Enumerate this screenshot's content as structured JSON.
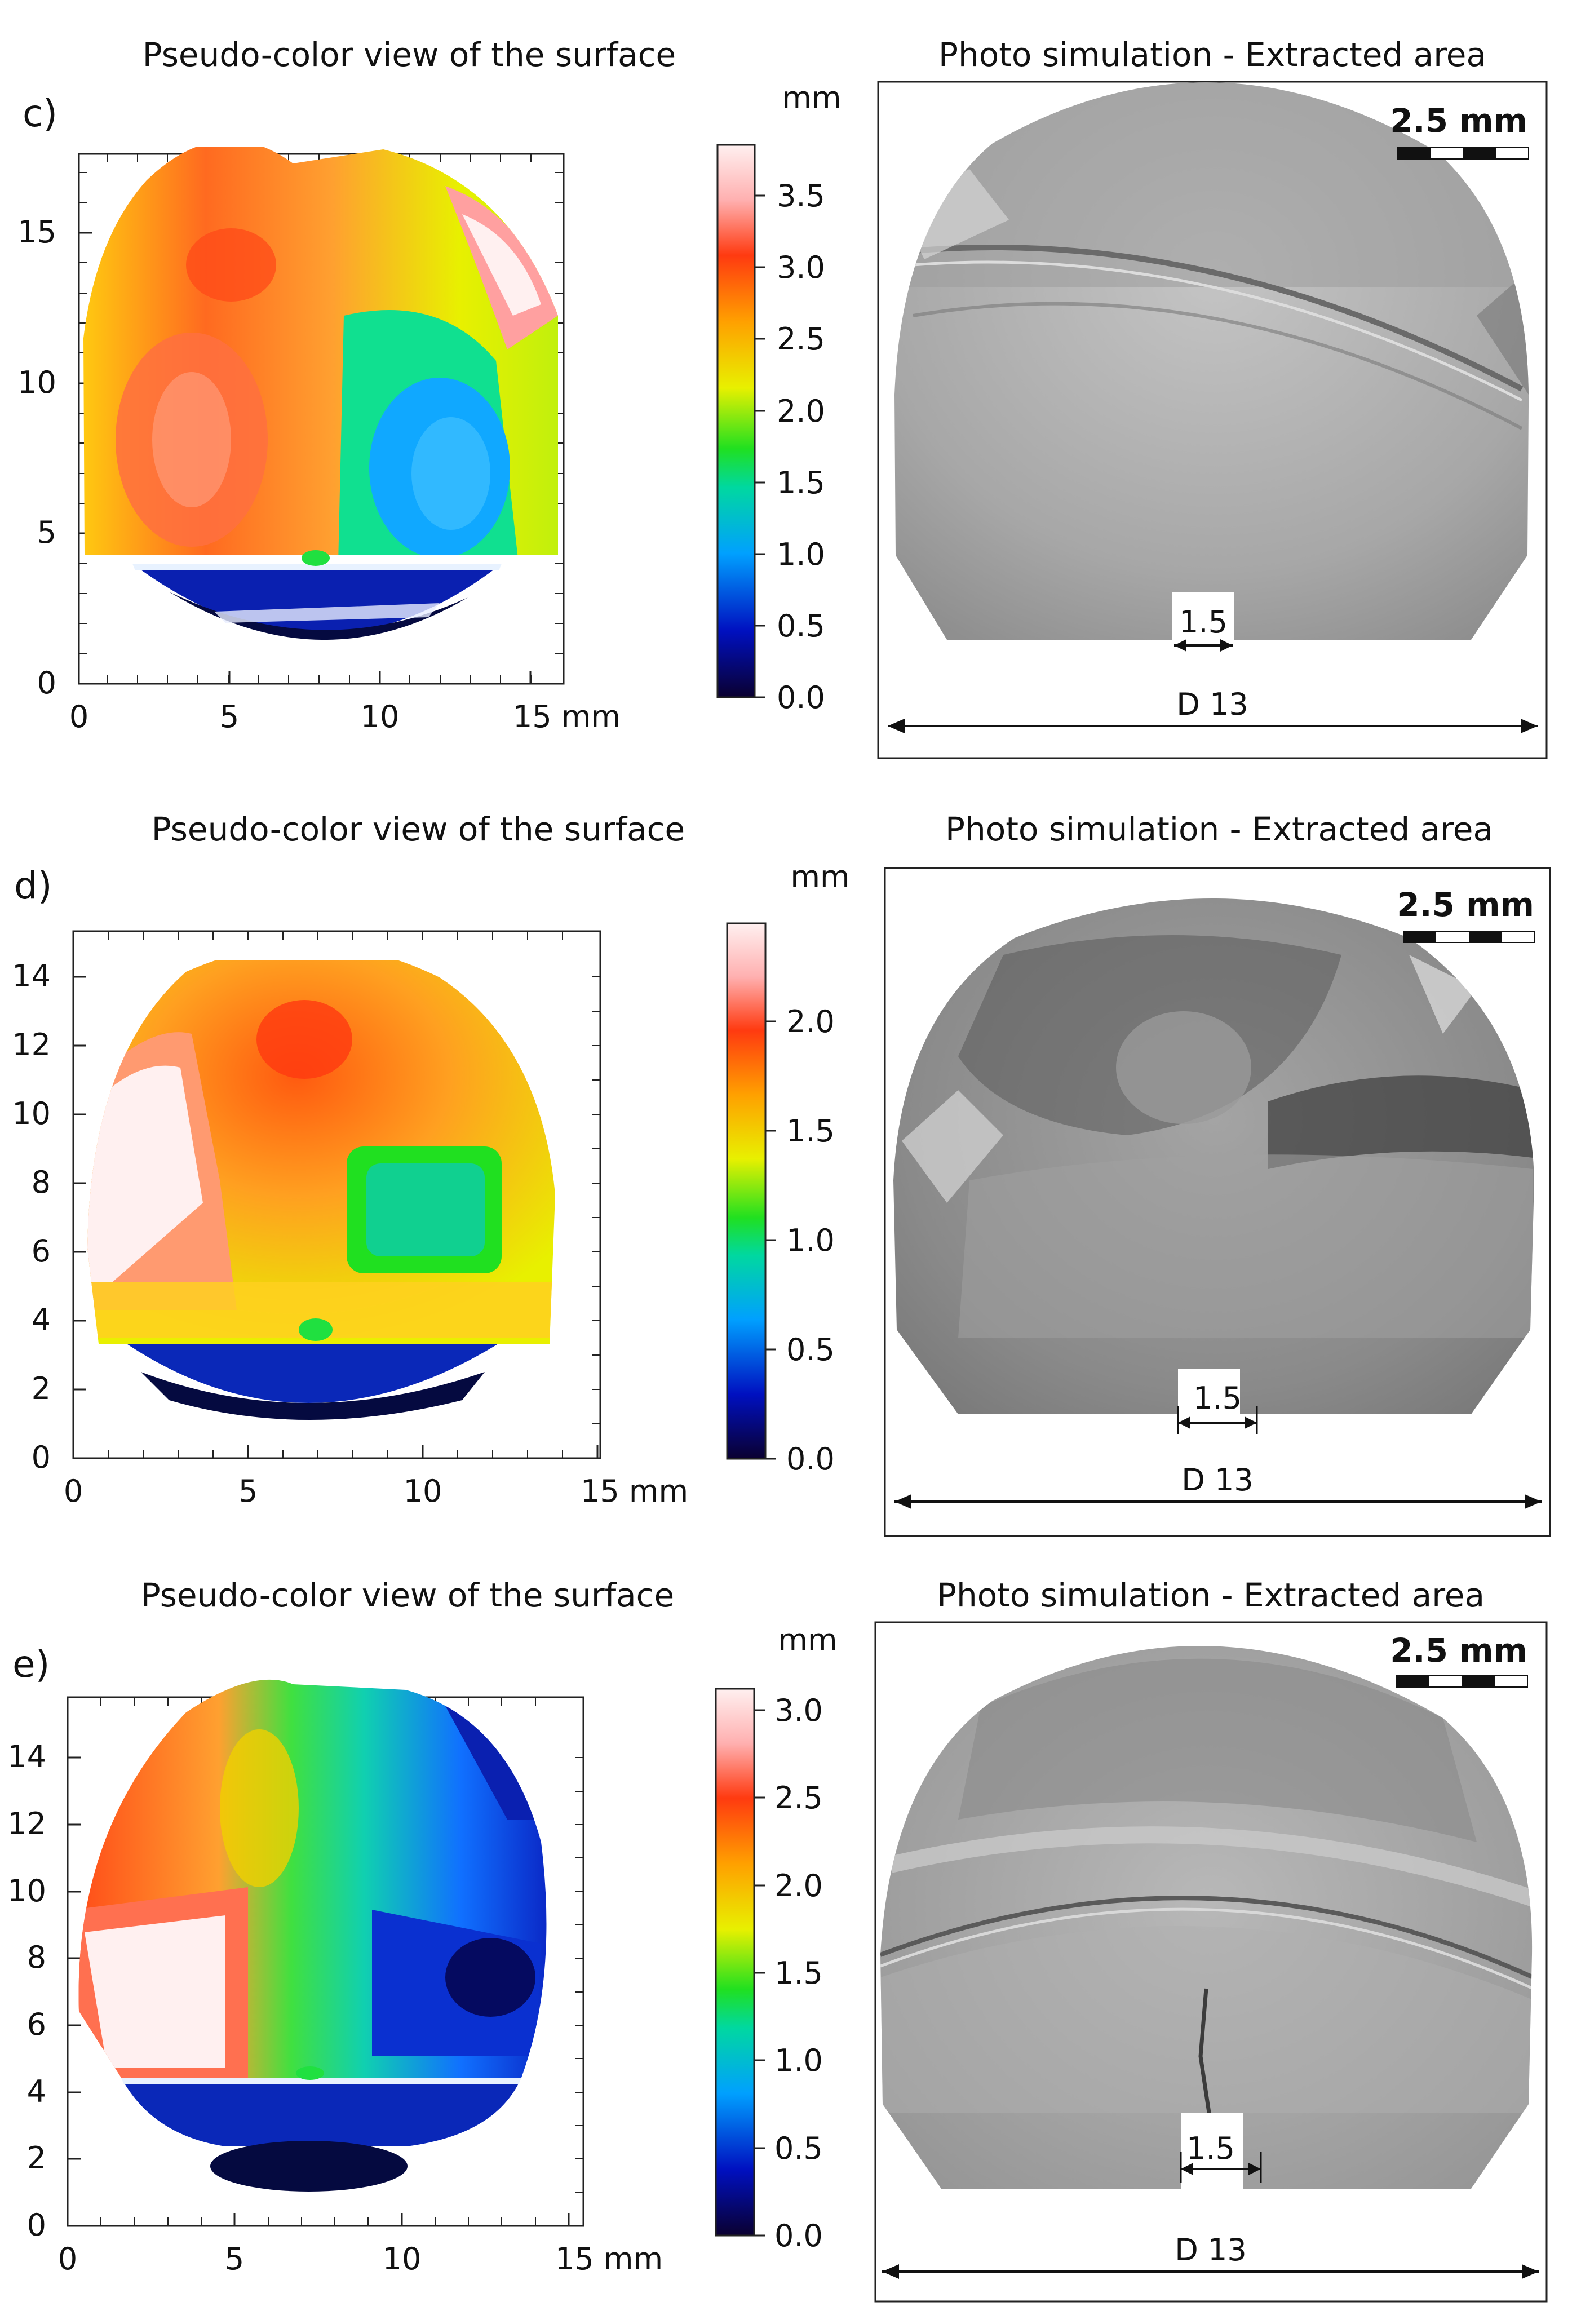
{
  "labels": {
    "pseudo_title": "Pseudo-color view of the surface",
    "photo_title": "Photo simulation - Extracted area",
    "colorbar_unit": "mm",
    "axis_unit": "mm",
    "scale_bar": "2.5 mm",
    "gap_label": "1.5",
    "diameter_label": "D 13"
  },
  "panels": [
    {
      "letter": "c)",
      "xticks": [
        "0",
        "5",
        "10",
        "15 mm"
      ],
      "yticks": [
        "0",
        "5",
        "10",
        "15"
      ],
      "colorbar_ticks": [
        "0.0",
        "0.5",
        "1.0",
        "1.5",
        "2.0",
        "2.5",
        "3.0",
        "3.5"
      ]
    },
    {
      "letter": "d)",
      "xticks": [
        "0",
        "5",
        "10",
        "15 mm"
      ],
      "yticks": [
        "0",
        "2",
        "4",
        "6",
        "8",
        "10",
        "12",
        "14"
      ],
      "colorbar_ticks": [
        "0.0",
        "0.5",
        "1.0",
        "1.5",
        "2.0"
      ]
    },
    {
      "letter": "e)",
      "xticks": [
        "0",
        "5",
        "10",
        "15 mm"
      ],
      "yticks": [
        "0",
        "2",
        "4",
        "6",
        "8",
        "10",
        "12",
        "14"
      ],
      "colorbar_ticks": [
        "0.0",
        "0.5",
        "1.0",
        "1.5",
        "2.0",
        "2.5",
        "3.0"
      ]
    }
  ]
}
